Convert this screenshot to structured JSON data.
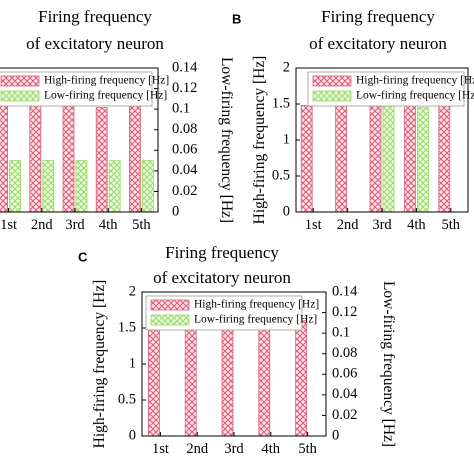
{
  "colors": {
    "high": "#dd5f79",
    "low": "#9adb68"
  },
  "chart_data": [
    {
      "type": "bar",
      "panel_label": "",
      "title_lines": [
        "Firing frequency",
        "of excitatory neuron"
      ],
      "categories": [
        "1st",
        "2nd",
        "3rd",
        "4th",
        "5th"
      ],
      "category_labels": [
        "1st",
        "2nd",
        "3rd",
        "4th",
        "5th"
      ],
      "series": [
        {
          "name": "High-firing frequency [Hz]",
          "axis": "left",
          "values": [
            1.5,
            1.55,
            1.5,
            1.45,
            1.5
          ]
        },
        {
          "name": "Low-firing frequency [Hz]",
          "axis": "right",
          "values": [
            0.05,
            0.05,
            0.05,
            0.05,
            0.05
          ]
        }
      ],
      "ylabel_left": "",
      "ylabel_right": "Low-firing frequency [Hz]",
      "ylim_left": [
        0,
        2
      ],
      "ylim_right": [
        0,
        0.14
      ],
      "yticks_left": [],
      "yticks_right": [
        "0",
        "0.02",
        "0.04",
        "0.06",
        "0.08",
        "0.1",
        "0.12",
        "0.14"
      ],
      "legend": "top-left"
    },
    {
      "type": "bar",
      "panel_label": "B",
      "title_lines": [
        "Firing frequency",
        "of excitatory neuron"
      ],
      "categories": [
        "1st",
        "2nd",
        "3rd",
        "4th",
        "5th"
      ],
      "category_labels": [
        "1st",
        "2nd",
        "3rd",
        "4th",
        "5th"
      ],
      "series": [
        {
          "name": "High-firing frequency [Hz]",
          "axis": "left",
          "values": [
            1.48,
            1.5,
            1.5,
            1.5,
            1.48
          ]
        },
        {
          "name": "Low-firing frequency [Hz]",
          "axis": "left",
          "values": [
            0,
            0,
            1.47,
            1.45,
            0
          ]
        }
      ],
      "ylabel_left": "High-firing frequency [Hz]",
      "ylabel_right": "",
      "ylim_left": [
        0,
        2
      ],
      "ylim_right": [
        0,
        0.14
      ],
      "yticks_left": [
        "0",
        "0.5",
        "1",
        "1.5",
        "2"
      ],
      "yticks_right": [],
      "legend": "top-right"
    },
    {
      "type": "bar",
      "panel_label": "C",
      "title_lines": [
        "Firing frequency",
        "of excitatory neuron"
      ],
      "categories": [
        "1st",
        "2nd",
        "3rd",
        "4th",
        "5th"
      ],
      "category_labels": [
        "1st",
        "2nd",
        "3rd",
        "4th",
        "5th"
      ],
      "series": [
        {
          "name": "High-firing frequency [Hz]",
          "axis": "left",
          "values": [
            1.6,
            1.6,
            1.6,
            1.6,
            1.6
          ]
        },
        {
          "name": "Low-firing frequency [Hz]",
          "axis": "right",
          "values": [
            0,
            0,
            0,
            0,
            0
          ]
        }
      ],
      "ylabel_left": "High-firing frequency [Hz]",
      "ylabel_right": "Low-firing frequency [Hz]",
      "ylim_left": [
        0,
        2
      ],
      "ylim_right": [
        0,
        0.14
      ],
      "yticks_left": [
        "0",
        "0.5",
        "1",
        "1.5",
        "2"
      ],
      "yticks_right": [
        "0",
        "0.02",
        "0.04",
        "0.06",
        "0.08",
        "0.1",
        "0.12",
        "0.14"
      ],
      "legend": "top-left"
    }
  ]
}
